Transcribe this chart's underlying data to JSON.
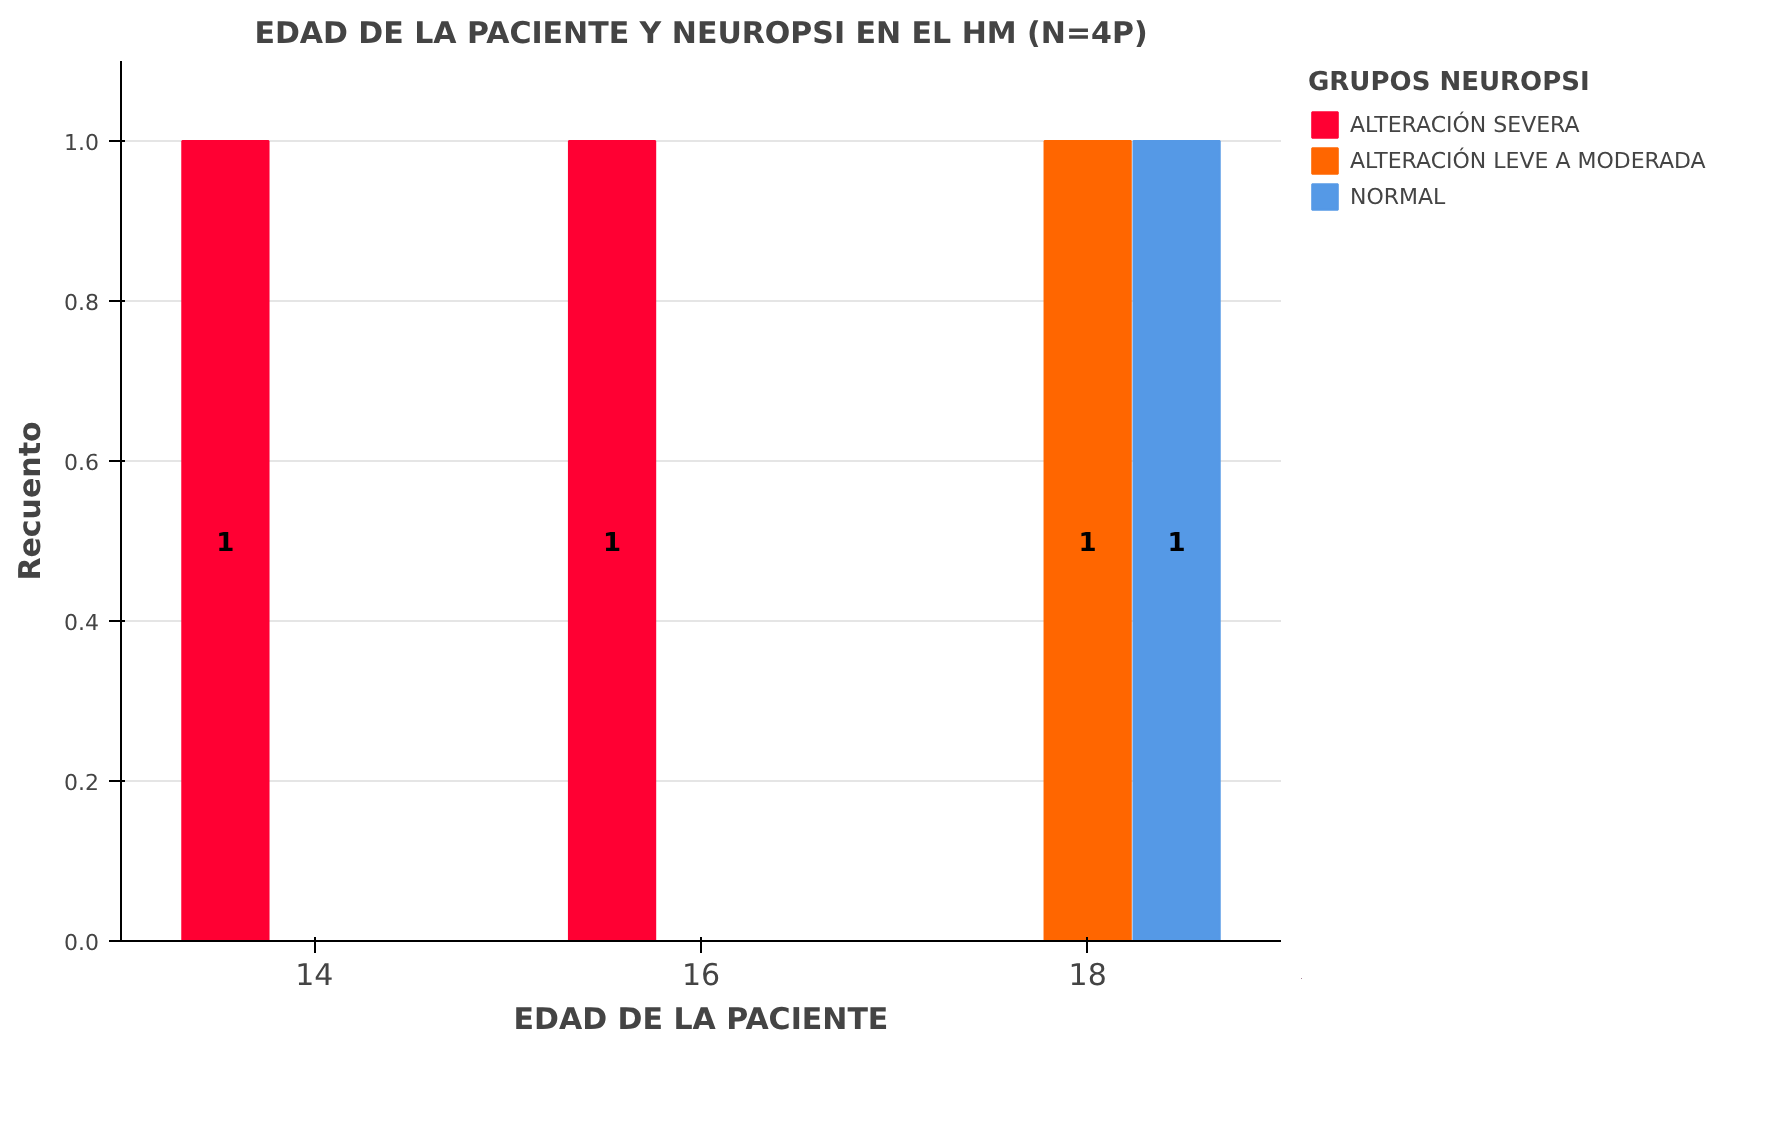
{
  "chart_data": {
    "type": "bar",
    "title": "EDAD DE LA PACIENTE Y NEUROPSI EN EL HM (N=4P)",
    "xlabel": "EDAD DE LA PACIENTE",
    "ylabel": "Recuento",
    "legend_title": "GRUPOS NEUROPSI",
    "categories": [
      "14",
      "16",
      "18"
    ],
    "series": [
      {
        "name": "ALTERACIÓN SEVERA",
        "color": "#ff0033",
        "values": [
          1,
          1,
          null
        ]
      },
      {
        "name": "ALTERACIÓN LEVE A MODERADA",
        "color": "#ff6600",
        "values": [
          null,
          null,
          1
        ]
      },
      {
        "name": "NORMAL",
        "color": "#5599e6",
        "values": [
          null,
          null,
          1
        ]
      }
    ],
    "ylim": [
      0,
      1.1
    ],
    "yticks": [
      {
        "value": 0,
        "label": "0.0"
      },
      {
        "value": 0.2,
        "label": "0.2"
      },
      {
        "value": 0.4,
        "label": "0.4"
      },
      {
        "value": 0.6,
        "label": "0.6"
      },
      {
        "value": 0.8,
        "label": "0.8"
      },
      {
        "value": 1,
        "label": "1.0"
      }
    ],
    "grid": "y",
    "legend": "right",
    "data_labels": true
  }
}
